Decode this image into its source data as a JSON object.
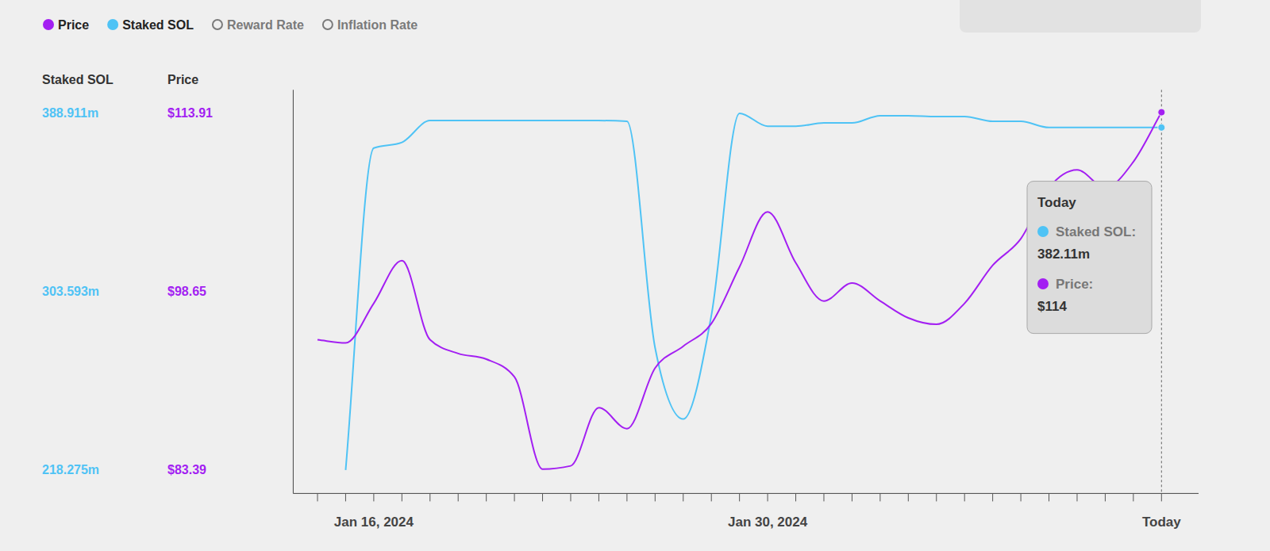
{
  "chart_data": {
    "type": "line",
    "ylabel": "Staked SOL",
    "y2label": "Price",
    "categories": [
      null,
      null,
      "Jan 16, 2024",
      null,
      null,
      null,
      null,
      null,
      null,
      null,
      null,
      null,
      null,
      null,
      null,
      null,
      "Jan 30, 2024",
      null,
      null,
      null,
      null,
      null,
      null,
      null,
      null,
      null,
      null,
      null,
      null,
      null,
      "Today"
    ],
    "series": [
      {
        "name": "Price",
        "color": "#a31ff2",
        "axis": "y2",
        "values": [
          94.53,
          94.26,
          97.65,
          101.31,
          94.53,
          93.36,
          92.87,
          91.35,
          83.46,
          83.74,
          88.72,
          86.92,
          92.11,
          93.98,
          95.92,
          100.76,
          105.47,
          101.11,
          97.85,
          99.38,
          97.85,
          96.4,
          95.85,
          97.65,
          100.9,
          103.18,
          107.54,
          109.07,
          107.54,
          109.76,
          114
        ]
      },
      {
        "name": "Staked SOL",
        "color": "#4fc3f5",
        "axis": "y",
        "values": [
          null,
          218.275,
          372.27,
          374.98,
          385.43,
          385.43,
          385.43,
          385.43,
          385.43,
          385.43,
          385.43,
          385.04,
          276.7,
          242.65,
          292.2,
          388.91,
          382.72,
          382.72,
          384.27,
          384.27,
          387.75,
          387.75,
          387.36,
          387.36,
          385.04,
          385.04,
          382.11,
          382.11,
          382.11,
          382.11,
          382.11
        ]
      }
    ],
    "inactive_legend": [
      "Reward Rate",
      "Inflation Rate"
    ],
    "ylim": [
      207.05,
      400.13
    ],
    "yticks": [
      {
        "value": 218.275,
        "label": "218.275m"
      },
      {
        "value": 303.593,
        "label": "303.593m"
      },
      {
        "value": 388.911,
        "label": "388.911m"
      }
    ],
    "y2lim": [
      81.38,
      115.92
    ],
    "y2ticks": [
      {
        "value": 83.39,
        "label": "$83.39"
      },
      {
        "value": 98.65,
        "label": "$98.65"
      },
      {
        "value": 113.91,
        "label": "$113.91"
      }
    ],
    "grid": false,
    "legend": "top-left",
    "tooltip": {
      "title": "Today",
      "items": [
        {
          "label": "Staked SOL:",
          "value": "382.11m"
        },
        {
          "label": "Price:",
          "value": "$114"
        }
      ]
    }
  }
}
